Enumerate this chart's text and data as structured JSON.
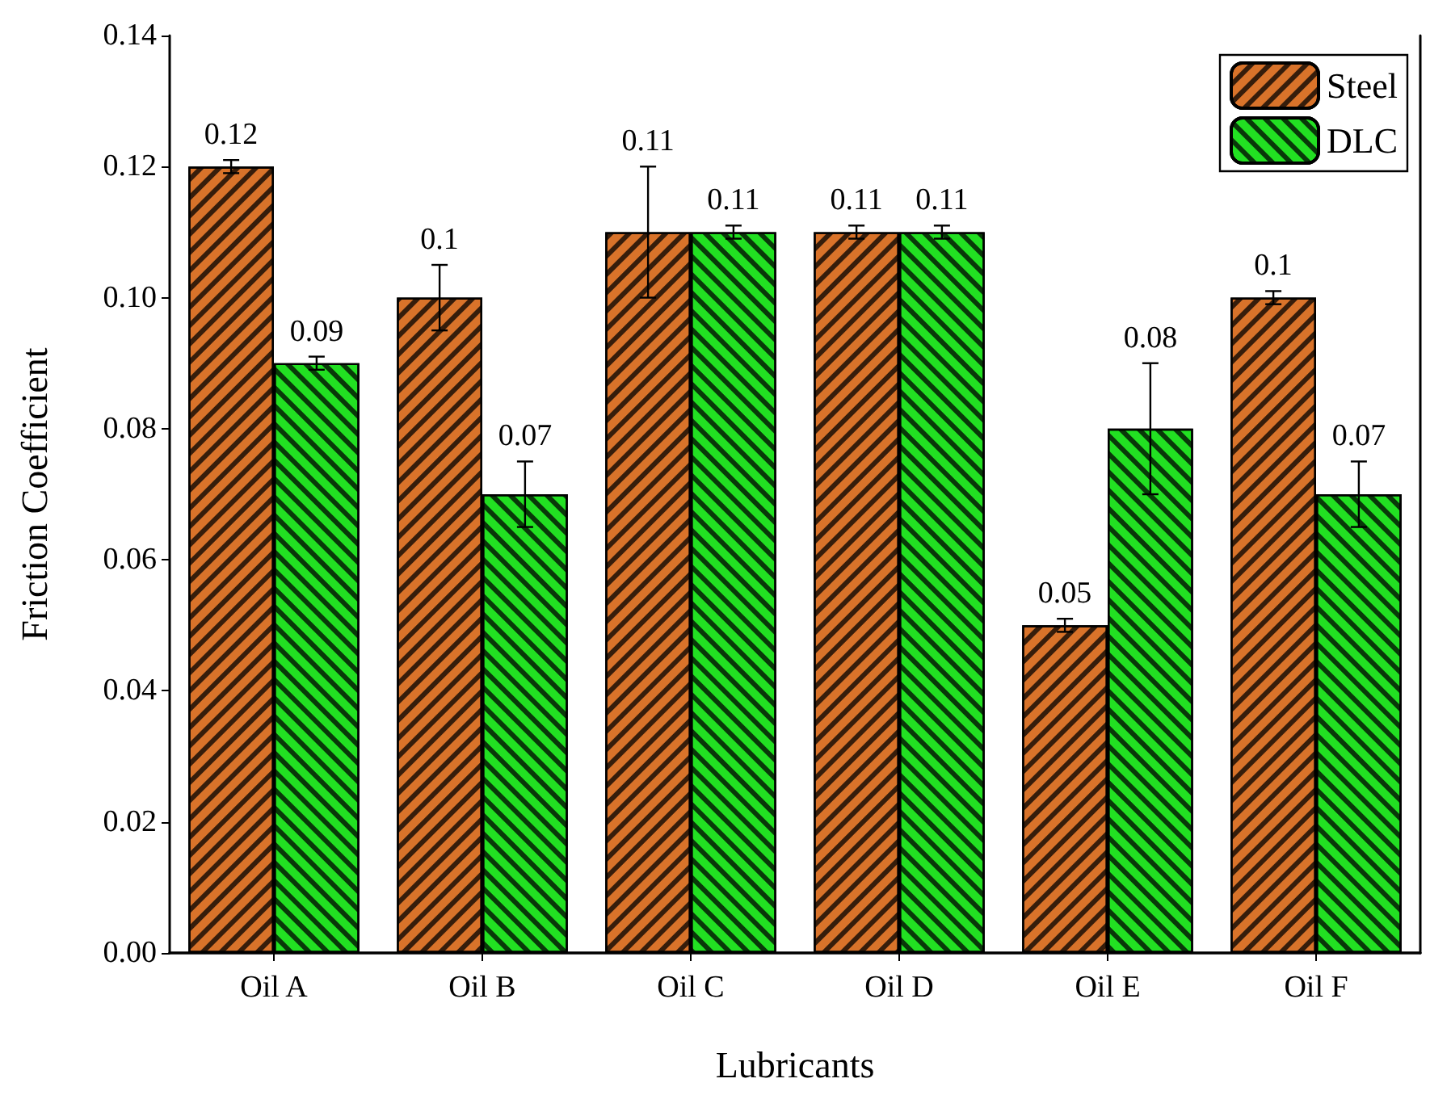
{
  "chart_data": {
    "type": "bar",
    "xlabel": "Lubricants",
    "ylabel": "Friction Coefficient",
    "categories": [
      "Oil A",
      "Oil B",
      "Oil C",
      "Oil D",
      "Oil E",
      "Oil F"
    ],
    "series": [
      {
        "name": "Steel",
        "color": "#d9732a",
        "values": [
          0.12,
          0.1,
          0.11,
          0.11,
          0.05,
          0.1
        ],
        "errors": [
          0.001,
          0.005,
          0.01,
          0.001,
          0.001,
          0.001
        ]
      },
      {
        "name": "DLC",
        "color": "#22e022",
        "values": [
          0.09,
          0.07,
          0.11,
          0.11,
          0.08,
          0.07
        ],
        "errors": [
          0.001,
          0.005,
          0.001,
          0.001,
          0.01,
          0.005
        ]
      }
    ],
    "ylim": [
      0,
      0.14
    ],
    "yticks": [
      {
        "value": 0,
        "label": "0.00"
      },
      {
        "value": 0.02,
        "label": "0.02"
      },
      {
        "value": 0.04,
        "label": "0.04"
      },
      {
        "value": 0.06,
        "label": "0.06"
      },
      {
        "value": 0.08,
        "label": "0.08"
      },
      {
        "value": 0.1,
        "label": "0.10"
      },
      {
        "value": 0.12,
        "label": "0.12"
      },
      {
        "value": 0.14,
        "label": "0.14"
      }
    ],
    "data_labels": true,
    "legend": "top right",
    "grid": false
  }
}
